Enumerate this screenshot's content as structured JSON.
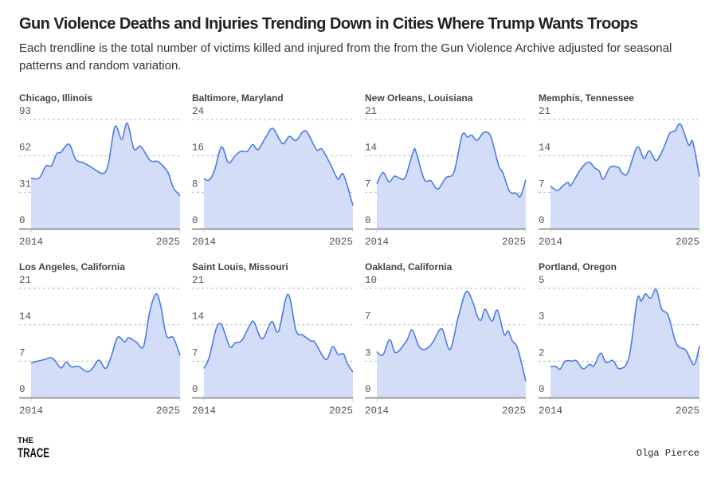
{
  "title": "Gun Violence Deaths and Injuries Trending Down in Cities Where Trump Wants Troops",
  "subtitle": "Each trendline is the total number of victims killed and injured from the from the Gun Violence Archive adjusted for seasonal patterns and random variation.",
  "logo": {
    "line1": "THE",
    "line2": "TRACE"
  },
  "credit": "Olga Pierce",
  "colors": {
    "line": "#4a7be8",
    "fill": "#d3ddf8",
    "grid": "#bbbbbb",
    "axis": "#999999"
  },
  "chart_data": [
    {
      "type": "area",
      "title": "Chicago, Illinois",
      "ylim": [
        0,
        93
      ],
      "yticks": [
        "0",
        "31",
        "62",
        "93"
      ],
      "xticks": [
        "2014",
        "2025"
      ],
      "xlim": [
        2014,
        2025
      ],
      "x": [
        2014,
        2014.6,
        2015.1,
        2015.5,
        2015.9,
        2016.2,
        2016.8,
        2017.3,
        2017.9,
        2018.5,
        2019.3,
        2019.7,
        2020.2,
        2020.7,
        2021.1,
        2021.6,
        2022.1,
        2022.8,
        2023.4,
        2024.1,
        2024.5,
        2025
      ],
      "y": [
        43,
        43,
        53.5,
        53.5,
        64,
        65,
        72,
        59,
        56,
        52,
        47,
        55,
        87,
        76,
        90,
        68,
        70,
        58,
        57,
        48,
        35,
        28
      ]
    },
    {
      "type": "area",
      "title": "Baltimore, Maryland",
      "ylim": [
        0,
        24
      ],
      "yticks": [
        "0",
        "8",
        "16",
        "24"
      ],
      "xticks": [
        "2014",
        "2025"
      ],
      "xlim": [
        2014,
        2025
      ],
      "x": [
        2014,
        2014.4,
        2014.8,
        2015.3,
        2015.8,
        2016.3,
        2016.7,
        2017.2,
        2017.6,
        2018,
        2018.6,
        2019.1,
        2019.8,
        2020.3,
        2020.8,
        2021.5,
        2022.3,
        2022.7,
        2023.3,
        2023.9,
        2024.3,
        2025
      ],
      "y": [
        11,
        10.7,
        13,
        18,
        14.5,
        16,
        17,
        17,
        18.5,
        17.4,
        20.3,
        22,
        18.7,
        20.3,
        19.4,
        21.5,
        17.4,
        17.5,
        14.4,
        10.9,
        11.9,
        5.1
      ]
    },
    {
      "type": "area",
      "title": "New Orleans, Louisiana",
      "ylim": [
        0,
        21
      ],
      "yticks": [
        "0",
        "7",
        "14",
        "21"
      ],
      "xticks": [
        "2014",
        "2025"
      ],
      "xlim": [
        2014,
        2025
      ],
      "x": [
        2014,
        2014.45,
        2014.9,
        2015.3,
        2015.7,
        2016.1,
        2016.7,
        2016.9,
        2017.5,
        2018,
        2018.5,
        2019.1,
        2019.7,
        2020.3,
        2020.7,
        2021,
        2021.4,
        2021.9,
        2022.4,
        2023,
        2023.3,
        2023.8,
        2024.3,
        2024.6,
        2025
      ],
      "y": [
        8.6,
        10.8,
        9,
        10.1,
        9.7,
        9.9,
        14.9,
        14.7,
        9.5,
        9.2,
        7.6,
        9.8,
        10.9,
        18,
        17.6,
        18,
        17,
        18.5,
        17.8,
        12.1,
        10.8,
        7.2,
        6.8,
        6.2,
        9.4
      ]
    },
    {
      "type": "area",
      "title": "Memphis, Tennessee",
      "ylim": [
        0,
        21
      ],
      "yticks": [
        "0",
        "7",
        "14",
        "21"
      ],
      "xticks": [
        "2014",
        "2025"
      ],
      "xlim": [
        2014,
        2025
      ],
      "x": [
        2014,
        2014.5,
        2014.9,
        2015.3,
        2015.5,
        2016.2,
        2016.8,
        2017.3,
        2017.6,
        2017.9,
        2018.4,
        2019,
        2019.3,
        2019.7,
        2020.4,
        2020.9,
        2021.3,
        2021.8,
        2022.3,
        2022.8,
        2023.2,
        2023.6,
        2024.2,
        2024.5,
        2025
      ],
      "y": [
        8.2,
        7.3,
        8.2,
        8.9,
        8.3,
        11.3,
        12.8,
        11.6,
        11.1,
        9.5,
        11.8,
        11.8,
        10.7,
        10.7,
        15.7,
        13.5,
        15,
        13.1,
        15.2,
        18.3,
        18.8,
        20.1,
        16.1,
        16.7,
        10
      ]
    },
    {
      "type": "area",
      "title": "Los Angeles, California",
      "ylim": [
        0,
        21
      ],
      "yticks": [
        "0",
        "7",
        "14",
        "21"
      ],
      "xticks": [
        "2014",
        "2025"
      ],
      "xlim": [
        2014,
        2025
      ],
      "x": [
        2014,
        2014.5,
        2015.1,
        2015.4,
        2015.7,
        2016.2,
        2016.6,
        2017,
        2017.5,
        2018.1,
        2018.5,
        2019,
        2019.5,
        2019.9,
        2020.4,
        2020.9,
        2021.2,
        2021.8,
        2022.3,
        2022.7,
        2023,
        2023.3,
        2023.6,
        2024,
        2024.5,
        2025
      ],
      "y": [
        6.7,
        7,
        7.4,
        7.7,
        7.3,
        5.7,
        6.8,
        5.9,
        6,
        5,
        5.5,
        7.2,
        5.6,
        7.8,
        11.6,
        10.7,
        11.5,
        10.6,
        9.8,
        15.7,
        18.8,
        19.9,
        17.3,
        11.9,
        11.5,
        8.1
      ]
    },
    {
      "type": "area",
      "title": "Saint Louis, Missouri",
      "ylim": [
        0,
        21
      ],
      "yticks": [
        "0",
        "7",
        "14",
        "21"
      ],
      "xticks": [
        "2014",
        "2025"
      ],
      "xlim": [
        2014,
        2025
      ],
      "x": [
        2014,
        2014.4,
        2014.9,
        2015.3,
        2015.9,
        2016.3,
        2016.8,
        2017.4,
        2017.7,
        2018.3,
        2019,
        2019.5,
        2020.2,
        2020.8,
        2021.3,
        2021.9,
        2022.2,
        2023,
        2023.5,
        2023.9,
        2024.3,
        2024.6,
        2025
      ],
      "y": [
        5.6,
        7.8,
        13.2,
        14,
        9.8,
        10.5,
        11,
        14,
        14.5,
        11.3,
        14.6,
        12.7,
        19.9,
        12.9,
        12,
        10.9,
        10.6,
        7.3,
        9.8,
        8.3,
        8.4,
        6.5,
        4.9
      ]
    },
    {
      "type": "area",
      "title": "Oakland, California",
      "ylim": [
        0,
        10
      ],
      "yticks": [
        "0",
        "3",
        "7",
        "10"
      ],
      "xticks": [
        "2014",
        "2025"
      ],
      "xlim": [
        2014,
        2025
      ],
      "x": [
        2014,
        2014.45,
        2014.95,
        2015.4,
        2016.2,
        2016.6,
        2017.1,
        2017.5,
        2017.9,
        2018.2,
        2018.8,
        2019.4,
        2020,
        2020.6,
        2021.1,
        2021.4,
        2021.7,
        2022,
        2022.5,
        2022.9,
        2023.4,
        2023.7,
        2024,
        2024.4,
        2025
      ],
      "y": [
        4.2,
        3.9,
        5.3,
        4.1,
        5.2,
        6.2,
        4.7,
        4.4,
        4.7,
        5.2,
        6.3,
        4.4,
        7.3,
        9.7,
        8.7,
        7.5,
        7.1,
        8.1,
        7,
        8,
        5.8,
        6.1,
        5.2,
        4.5,
        1.5
      ]
    },
    {
      "type": "area",
      "title": "Portland, Oregon",
      "ylim": [
        0,
        5
      ],
      "yticks": [
        "0",
        "2",
        "3",
        "5"
      ],
      "xticks": [
        "2014",
        "2025"
      ],
      "xlim": [
        2014,
        2025
      ],
      "x": [
        2014,
        2014.4,
        2014.7,
        2015.1,
        2015.6,
        2015.9,
        2016.4,
        2016.9,
        2017.2,
        2017.7,
        2018.1,
        2018.6,
        2019.1,
        2019.8,
        2020.4,
        2020.7,
        2021,
        2021.4,
        2021.8,
        2022.2,
        2022.7,
        2023.3,
        2024,
        2024.6,
        2025
      ],
      "y": [
        1.42,
        1.42,
        1.3,
        1.67,
        1.67,
        1.69,
        1.32,
        1.52,
        1.45,
        2.03,
        1.6,
        1.7,
        1.32,
        1.85,
        4.49,
        4.42,
        4.75,
        4.55,
        4.95,
        4.06,
        3.75,
        2.46,
        2.16,
        1.51,
        2.38
      ]
    }
  ]
}
